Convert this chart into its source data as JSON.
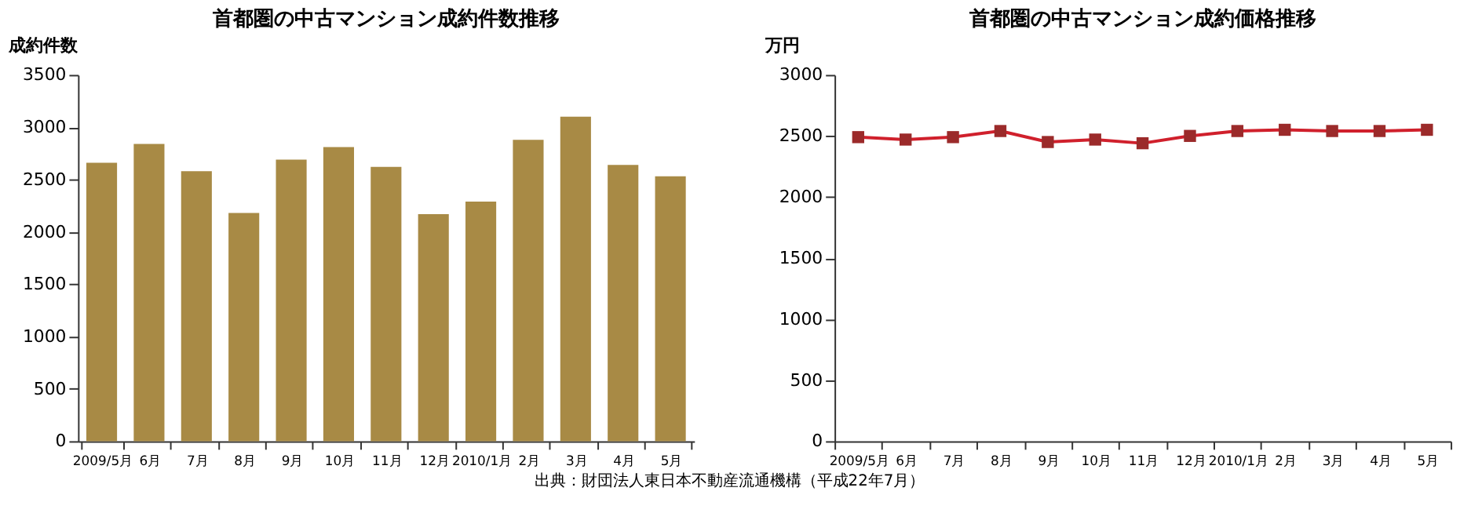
{
  "chart_data": [
    {
      "type": "bar",
      "title": "首都圏の中古マンション成約件数推移",
      "ylabel": "成約件数",
      "categories": [
        "2009/5月",
        "6月",
        "7月",
        "8月",
        "9月",
        "10月",
        "11月",
        "12月",
        "2010/1月",
        "2月",
        "3月",
        "4月",
        "5月"
      ],
      "values": [
        2660,
        2840,
        2580,
        2180,
        2690,
        2810,
        2620,
        2170,
        2290,
        2880,
        3100,
        2640,
        2530
      ],
      "color": "#a88a45",
      "ylim": [
        0,
        3500
      ],
      "yticks": [
        0,
        500,
        1000,
        1500,
        2000,
        2500,
        3000,
        3500
      ],
      "grid": false
    },
    {
      "type": "line",
      "title": "首都圏の中古マンション成約価格推移",
      "ylabel": "万円",
      "categories": [
        "2009/5月",
        "6月",
        "7月",
        "8月",
        "9月",
        "10月",
        "11月",
        "12月",
        "2010/1月",
        "2月",
        "3月",
        "4月",
        "5月"
      ],
      "series": [
        {
          "color": "#d0202c",
          "values": [
            2490,
            2470,
            2490,
            2540,
            2450,
            2470,
            2440,
            2500,
            2540,
            2550,
            2540,
            2540,
            2550
          ]
        }
      ],
      "marker": "square",
      "line_style": "solid",
      "ylim": [
        0,
        3000
      ],
      "yticks": [
        0,
        500,
        1000,
        1500,
        2000,
        2500,
        3000
      ],
      "grid": false,
      "annotations": [
        "出典：財団法人東日本不動産流通機構（平成22年7月）"
      ]
    }
  ]
}
